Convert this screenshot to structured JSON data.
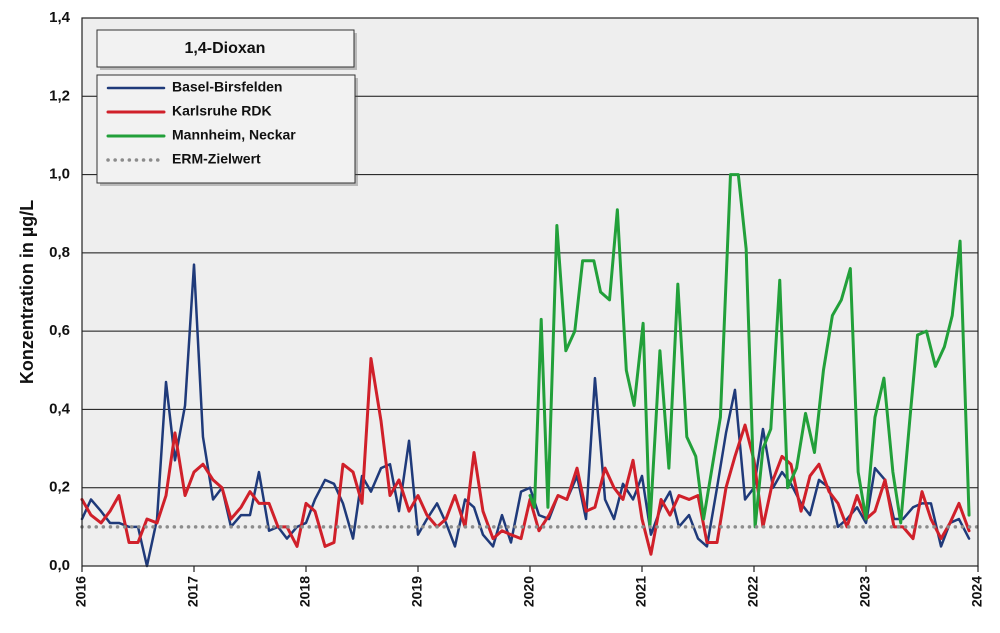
{
  "chart_data": {
    "type": "line",
    "title": "1,4-Dioxan",
    "ylabel": "Konzentration in µg/L",
    "xlim": [
      2016,
      2024
    ],
    "xticks": [
      2016,
      2017,
      2018,
      2019,
      2020,
      2021,
      2022,
      2023,
      2024
    ],
    "ylim": [
      0,
      1.4
    ],
    "yticks": [
      {
        "value": 0,
        "label": "0,0"
      },
      {
        "value": 0.2,
        "label": "0,2"
      },
      {
        "value": 0.4,
        "label": "0,4"
      },
      {
        "value": 0.6,
        "label": "0,6"
      },
      {
        "value": 0.8,
        "label": "0,8"
      },
      {
        "value": 1.0,
        "label": "1,0"
      },
      {
        "value": 1.2,
        "label": "1,2"
      },
      {
        "value": 1.4,
        "label": "1,4"
      }
    ],
    "grid": true,
    "x": [
      2016,
      2016.08,
      2016.17,
      2016.25,
      2016.33,
      2016.42,
      2016.5,
      2016.58,
      2016.67,
      2016.75,
      2016.83,
      2016.92,
      2017,
      2017.08,
      2017.17,
      2017.25,
      2017.33,
      2017.42,
      2017.5,
      2017.58,
      2017.67,
      2017.75,
      2017.83,
      2017.92,
      2018,
      2018.08,
      2018.17,
      2018.25,
      2018.33,
      2018.42,
      2018.5,
      2018.58,
      2018.67,
      2018.75,
      2018.83,
      2018.92,
      2019,
      2019.08,
      2019.17,
      2019.25,
      2019.33,
      2019.42,
      2019.5,
      2019.58,
      2019.67,
      2019.75,
      2019.83,
      2019.92,
      2020,
      2020.08,
      2020.17,
      2020.25,
      2020.33,
      2020.42,
      2020.5,
      2020.58,
      2020.67,
      2020.75,
      2020.83,
      2020.92,
      2021,
      2021.08,
      2021.17,
      2021.25,
      2021.33,
      2021.42,
      2021.5,
      2021.58,
      2021.67,
      2021.75,
      2021.83,
      2021.92,
      2022,
      2022.08,
      2022.17,
      2022.25,
      2022.33,
      2022.42,
      2022.5,
      2022.58,
      2022.67,
      2022.75,
      2022.83,
      2022.92,
      2023,
      2023.08,
      2023.17,
      2023.25,
      2023.33,
      2023.42,
      2023.5,
      2023.58,
      2023.67,
      2023.75,
      2023.83,
      2023.92
    ],
    "series": [
      {
        "name": "Basel-Birsfelden",
        "color": "#1f3a7a",
        "width": 2.5,
        "values": [
          0.12,
          0.17,
          0.14,
          0.11,
          0.11,
          0.1,
          0.1,
          0.0,
          0.12,
          0.47,
          0.27,
          0.41,
          0.77,
          0.33,
          0.17,
          0.2,
          0.1,
          0.13,
          0.13,
          0.24,
          0.09,
          0.1,
          0.07,
          0.1,
          0.11,
          0.17,
          0.22,
          0.21,
          0.16,
          0.07,
          0.23,
          0.19,
          0.25,
          0.26,
          0.14,
          0.32,
          0.08,
          0.12,
          0.16,
          0.11,
          0.05,
          0.17,
          0.15,
          0.08,
          0.05,
          0.13,
          0.06,
          0.19,
          0.2,
          0.13,
          0.12,
          0.18,
          0.17,
          0.23,
          0.12,
          0.48,
          0.17,
          0.12,
          0.21,
          0.17,
          0.23,
          0.08,
          0.15,
          0.19,
          0.1,
          0.13,
          0.07,
          0.05,
          0.2,
          0.34,
          0.45,
          0.17,
          0.2,
          0.35,
          0.2,
          0.24,
          0.21,
          0.16,
          0.13,
          0.22,
          0.2,
          0.1,
          0.12,
          0.15,
          0.11,
          0.25,
          0.22,
          0.12,
          0.12,
          0.15,
          0.16,
          0.16,
          0.05,
          0.11,
          0.12,
          0.07
        ]
      },
      {
        "name": "Karlsruhe RDK",
        "color": "#d0202a",
        "width": 3,
        "values": [
          0.17,
          0.13,
          0.11,
          0.14,
          0.18,
          0.06,
          0.06,
          0.12,
          0.11,
          0.18,
          0.34,
          0.18,
          0.24,
          0.26,
          0.22,
          0.2,
          0.12,
          0.15,
          0.19,
          0.16,
          0.16,
          0.1,
          0.1,
          0.05,
          0.16,
          0.14,
          0.05,
          0.06,
          0.26,
          0.24,
          0.16,
          0.53,
          0.37,
          0.18,
          0.22,
          0.14,
          0.18,
          0.13,
          0.1,
          0.12,
          0.18,
          0.1,
          0.29,
          0.14,
          0.07,
          0.09,
          0.08,
          0.07,
          0.17,
          0.09,
          0.13,
          0.18,
          0.17,
          0.25,
          0.14,
          0.15,
          0.25,
          0.2,
          0.17,
          0.27,
          0.12,
          0.03,
          0.17,
          0.13,
          0.18,
          0.17,
          0.18,
          0.06,
          0.06,
          0.2,
          0.28,
          0.36,
          0.27,
          0.1,
          0.22,
          0.28,
          0.26,
          0.14,
          0.23,
          0.26,
          0.19,
          0.16,
          0.1,
          0.18,
          0.12,
          0.14,
          0.22,
          0.1,
          0.1,
          0.07,
          0.19,
          0.12,
          0.07,
          0.11,
          0.16,
          0.09
        ]
      },
      {
        "name": "Mannheim, Neckar",
        "color": "#22a03a",
        "width": 3,
        "x": [
          2020,
          2020.04,
          2020.1,
          2020.16,
          2020.24,
          2020.32,
          2020.4,
          2020.47,
          2020.57,
          2020.63,
          2020.71,
          2020.78,
          2020.86,
          2020.93,
          2021.01,
          2021.07,
          2021.16,
          2021.24,
          2021.32,
          2021.4,
          2021.48,
          2021.55,
          2021.7,
          2021.79,
          2021.86,
          2021.93,
          2022.01,
          2022.08,
          2022.15,
          2022.23,
          2022.3,
          2022.38,
          2022.46,
          2022.54,
          2022.62,
          2022.7,
          2022.78,
          2022.86,
          2022.93,
          2023,
          2023.08,
          2023.16,
          2023.24,
          2023.31,
          2023.39,
          2023.46,
          2023.54,
          2023.62,
          2023.7,
          2023.77,
          2023.84,
          2023.92
        ],
        "values": [
          0.18,
          0.15,
          0.63,
          0.15,
          0.87,
          0.55,
          0.6,
          0.78,
          0.78,
          0.7,
          0.68,
          0.91,
          0.5,
          0.41,
          0.62,
          0.1,
          0.55,
          0.25,
          0.72,
          0.33,
          0.28,
          0.12,
          0.38,
          1.0,
          1.0,
          0.81,
          0.1,
          0.3,
          0.35,
          0.73,
          0.2,
          0.25,
          0.39,
          0.29,
          0.5,
          0.64,
          0.68,
          0.76,
          0.24,
          0.12,
          0.38,
          0.48,
          0.24,
          0.11,
          0.37,
          0.59,
          0.6,
          0.51,
          0.56,
          0.64,
          0.83,
          0.13
        ]
      },
      {
        "name": "ERM-Zielwert",
        "color": "#8c8c8c",
        "width": 3.5,
        "style": "dotted",
        "x": [
          2016,
          2024
        ],
        "values": [
          0.1,
          0.1
        ]
      }
    ]
  }
}
